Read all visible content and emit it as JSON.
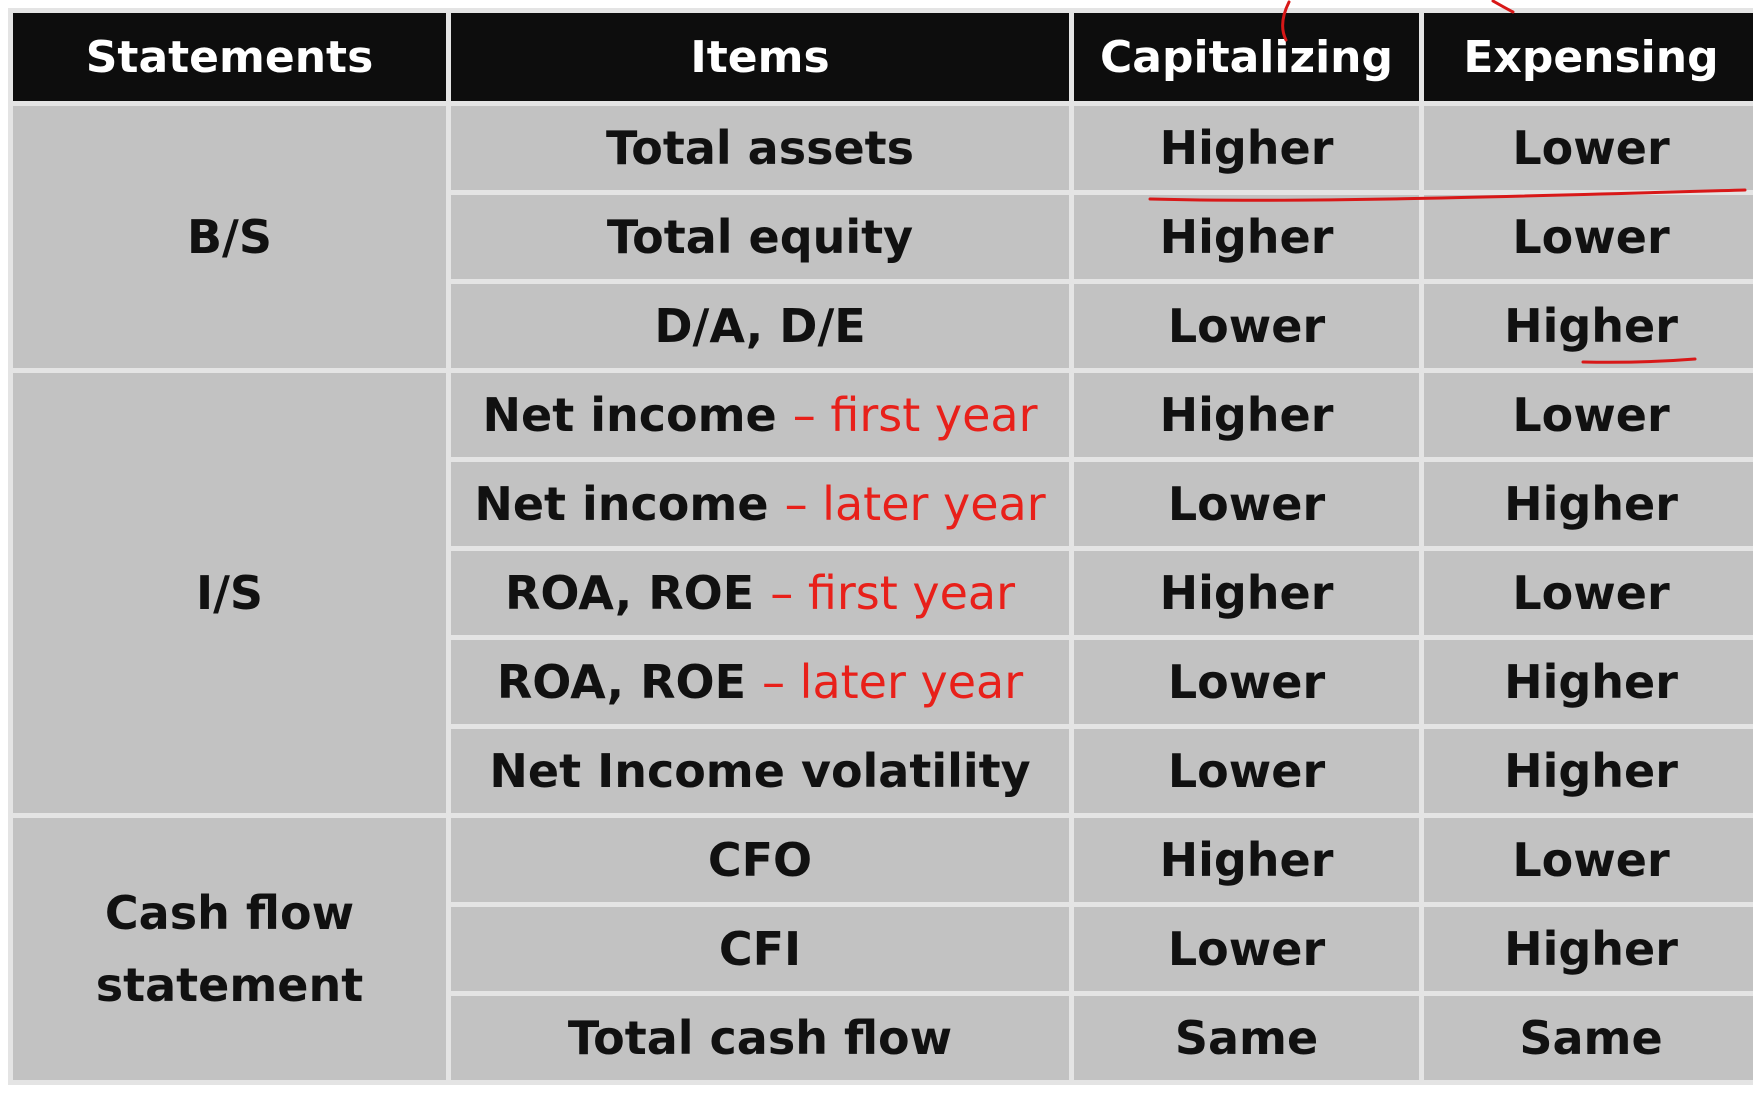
{
  "headers": [
    "Statements",
    "Items",
    "Capitalizing",
    "Expensing"
  ],
  "groups": [
    {
      "statement": "B/S",
      "rows": [
        {
          "item": "Total assets",
          "qualifier": "",
          "capitalizing": "Higher",
          "expensing": "Lower"
        },
        {
          "item": "Total equity",
          "qualifier": "",
          "capitalizing": "Higher",
          "expensing": "Lower"
        },
        {
          "item": "D/A, D/E",
          "qualifier": "",
          "capitalizing": "Lower",
          "expensing": "Higher"
        }
      ]
    },
    {
      "statement": "I/S",
      "rows": [
        {
          "item": "Net income ",
          "qualifier": "– first year",
          "capitalizing": "Higher",
          "expensing": "Lower"
        },
        {
          "item": "Net income ",
          "qualifier": "– later year",
          "capitalizing": "Lower",
          "expensing": "Higher"
        },
        {
          "item": "ROA, ROE ",
          "qualifier": "– first year",
          "capitalizing": "Higher",
          "expensing": "Lower"
        },
        {
          "item": "ROA, ROE ",
          "qualifier": "– later year",
          "capitalizing": "Lower",
          "expensing": "Higher"
        },
        {
          "item": "Net Income volatility",
          "qualifier": "",
          "capitalizing": "Lower",
          "expensing": "Higher"
        }
      ]
    },
    {
      "statement": "Cash flow statement",
      "rows": [
        {
          "item": "CFO",
          "qualifier": "",
          "capitalizing": "Higher",
          "expensing": "Lower"
        },
        {
          "item": "CFI",
          "qualifier": "",
          "capitalizing": "Lower",
          "expensing": "Higher"
        },
        {
          "item": "Total cash flow",
          "qualifier": "",
          "capitalizing": "Same",
          "expensing": "Same"
        }
      ]
    }
  ],
  "colors": {
    "header_bg": "#0d0d0d",
    "cell_bg": "#c2c2c2",
    "qualifier_text": "#e8201a",
    "annotation_ink": "#d81818"
  }
}
